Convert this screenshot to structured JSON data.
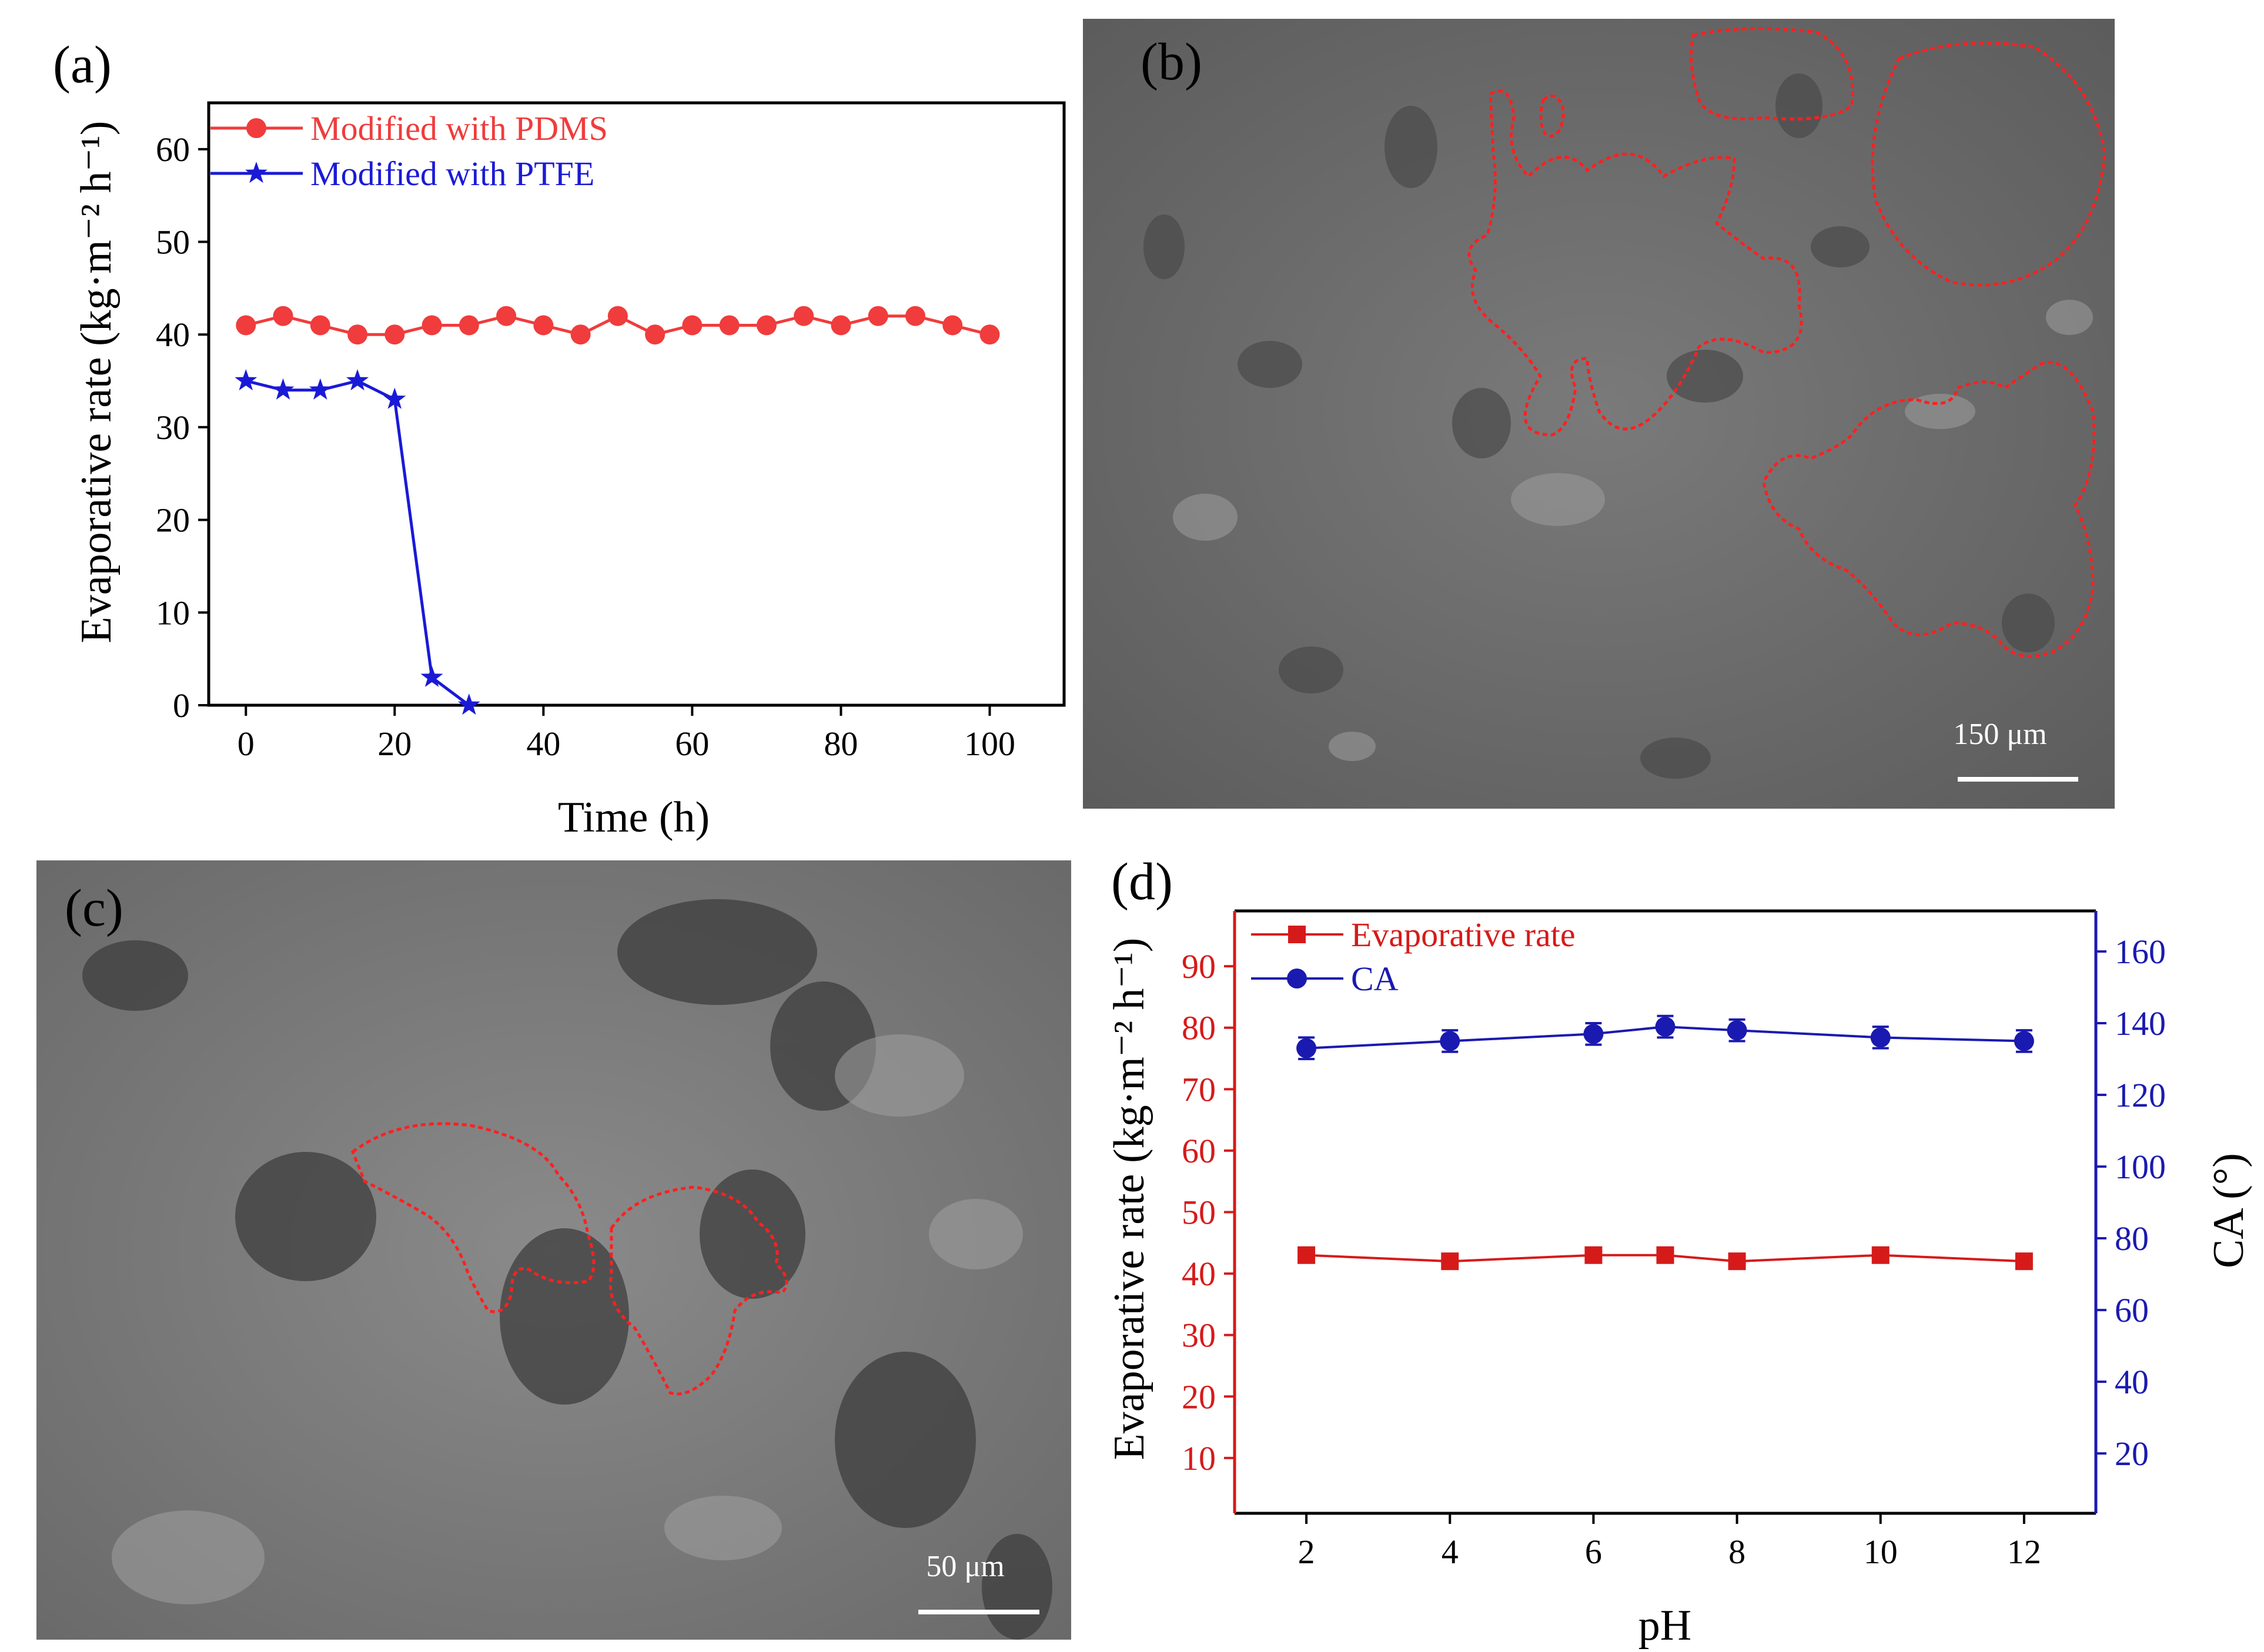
{
  "panels": {
    "a": "(a)",
    "b": "(b)",
    "c": "(c)",
    "d": "(d)"
  },
  "scale_bars": {
    "b": "150 μm",
    "c": "50 μm"
  },
  "colors": {
    "pdms": "#f03c3c",
    "ptfe": "#1a1ad6",
    "evap_axis": "#d61a1a",
    "ca_axis": "#1a1ab0",
    "sem_bg": "#6e6e6e",
    "outline": "#ff2020"
  },
  "chart_data": [
    {
      "id": "a",
      "type": "line",
      "title": "",
      "xlabel": "Time (h)",
      "ylabel": "Evaporative rate (kg·m⁻² h⁻¹)",
      "xlim": [
        -5,
        110
      ],
      "ylim": [
        0,
        65
      ],
      "xticks": [
        0,
        20,
        40,
        60,
        80,
        100
      ],
      "yticks": [
        0,
        10,
        20,
        30,
        40,
        50,
        60
      ],
      "grid": false,
      "legend": "top-left",
      "series": [
        {
          "name": "Modified with PDMS",
          "marker": "circle",
          "color": "#f03c3c",
          "x": [
            0,
            5,
            10,
            15,
            20,
            25,
            30,
            35,
            40,
            45,
            50,
            55,
            60,
            65,
            70,
            75,
            80,
            85,
            90,
            95,
            100
          ],
          "y": [
            41,
            42,
            41,
            40,
            40,
            41,
            41,
            42,
            41,
            40,
            42,
            40,
            41,
            41,
            41,
            42,
            41,
            42,
            42,
            41,
            40
          ]
        },
        {
          "name": "Modified with PTFE",
          "marker": "star",
          "color": "#1a1ad6",
          "x": [
            0,
            5,
            10,
            15,
            20,
            25,
            30
          ],
          "y": [
            35,
            34,
            34,
            35,
            33,
            3,
            0
          ]
        }
      ]
    },
    {
      "id": "d",
      "type": "line",
      "title": "",
      "xlabel": "pH",
      "ylabel": "Evaporative rate (kg·m⁻² h⁻¹)",
      "y2label": "CA (°)",
      "xlim": [
        1,
        13
      ],
      "ylim": [
        1,
        99
      ],
      "y2lim": [
        3.3,
        171.3
      ],
      "xticks": [
        2,
        4,
        6,
        8,
        10,
        12
      ],
      "yticks": [
        10,
        20,
        30,
        40,
        50,
        60,
        70,
        80,
        90
      ],
      "y2ticks": [
        20,
        40,
        60,
        80,
        100,
        120,
        140,
        160
      ],
      "grid": false,
      "legend": "top-left",
      "series": [
        {
          "name": "Evaporative rate",
          "axis": "left",
          "marker": "square",
          "color": "#d61a1a",
          "x": [
            2,
            4,
            6,
            7,
            8,
            10,
            12
          ],
          "y": [
            43,
            42,
            43,
            43,
            42,
            43,
            42
          ]
        },
        {
          "name": "CA",
          "axis": "right",
          "marker": "circle",
          "color": "#1a1ab0",
          "x": [
            2,
            4,
            6,
            7,
            8,
            10,
            12
          ],
          "y": [
            133,
            135,
            137,
            139,
            138,
            136,
            135
          ],
          "error": [
            3,
            3,
            3,
            3,
            3,
            3,
            3
          ]
        }
      ]
    }
  ]
}
